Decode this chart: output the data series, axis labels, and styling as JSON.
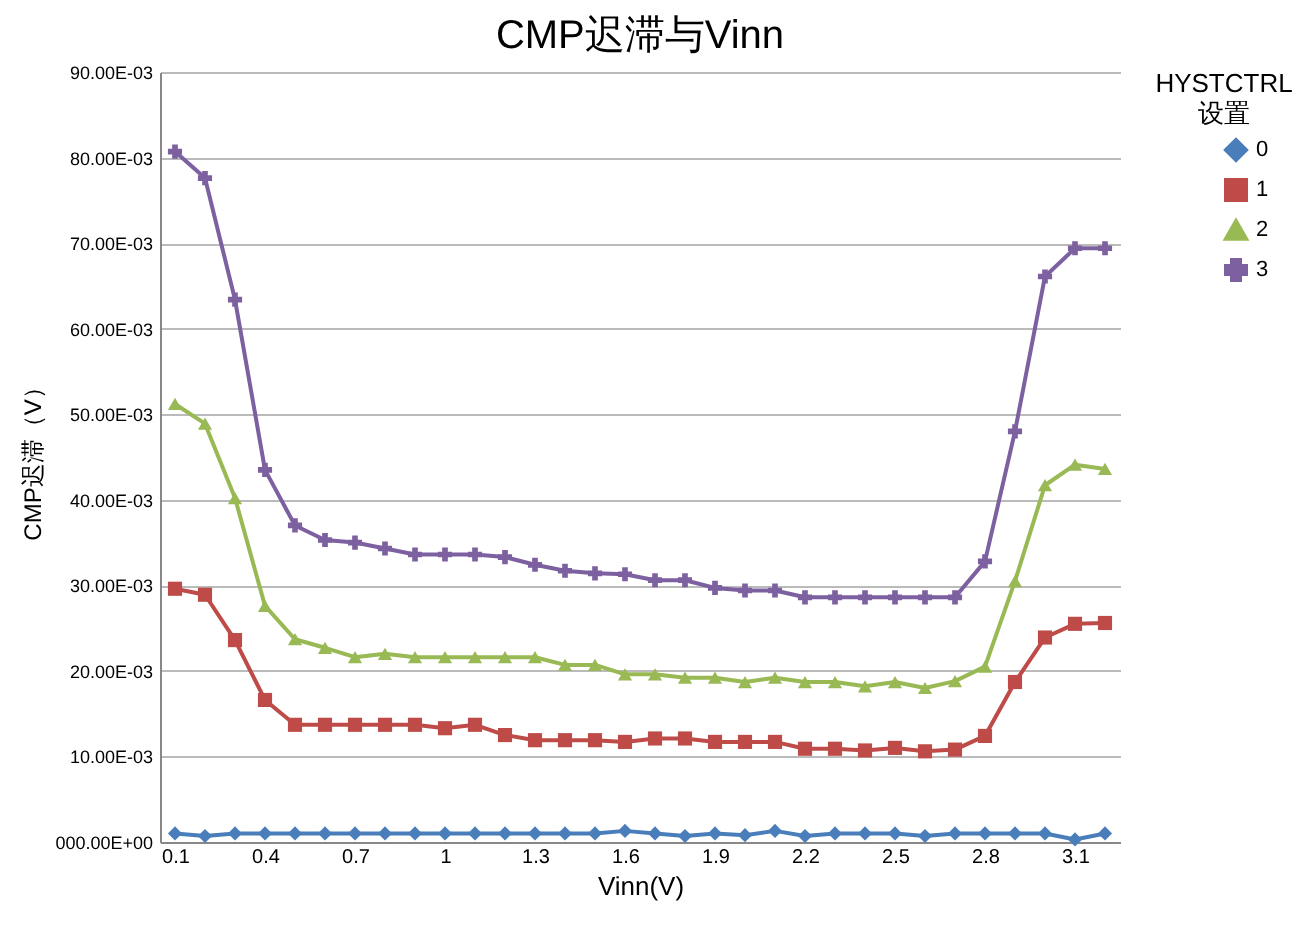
{
  "chart_data": {
    "type": "line",
    "title": "CMP迟滞与Vinn",
    "xlabel": "Vinn(V)",
    "ylabel": "CMP迟滞（V）",
    "legend_title": "HYSTCTRL 设置",
    "categories": [
      "0.1",
      null,
      null,
      "0.4",
      null,
      null,
      "0.7",
      null,
      null,
      "1",
      null,
      null,
      "1.3",
      null,
      null,
      "1.6",
      null,
      null,
      "1.9",
      null,
      null,
      "2.2",
      null,
      null,
      "2.5",
      null,
      null,
      "2.8",
      null,
      null,
      "3.1",
      null
    ],
    "series": [
      {
        "name": "0",
        "color": "#4a7ebb",
        "marker": "diamond",
        "values": [
          0.001,
          0.0007,
          0.001,
          0.001,
          0.001,
          0.001,
          0.001,
          0.001,
          0.001,
          0.001,
          0.001,
          0.001,
          0.001,
          0.001,
          0.001,
          0.0013,
          0.001,
          0.0007,
          0.001,
          0.0008,
          0.0013,
          0.0007,
          0.001,
          0.001,
          0.001,
          0.0007,
          0.001,
          0.001,
          0.001,
          0.001,
          0.0003,
          0.001
        ]
      },
      {
        "name": "1",
        "color": "#be4b48",
        "marker": "square",
        "values": [
          0.0296,
          0.0289,
          0.0236,
          0.0166,
          0.0137,
          0.0137,
          0.0137,
          0.0137,
          0.0137,
          0.0133,
          0.0137,
          0.0125,
          0.0119,
          0.0119,
          0.0119,
          0.0117,
          0.0121,
          0.0121,
          0.0117,
          0.0117,
          0.0117,
          0.0109,
          0.0109,
          0.0107,
          0.011,
          0.0106,
          0.0108,
          0.0124,
          0.0187,
          0.0239,
          0.0255,
          0.0256
        ]
      },
      {
        "name": "2",
        "color": "#98b954",
        "marker": "triangle",
        "values": [
          0.0512,
          0.0489,
          0.0402,
          0.0276,
          0.0237,
          0.0227,
          0.0216,
          0.022,
          0.0216,
          0.0216,
          0.0216,
          0.0216,
          0.0216,
          0.0207,
          0.0207,
          0.0196,
          0.0196,
          0.0192,
          0.0192,
          0.0187,
          0.0192,
          0.0187,
          0.0187,
          0.0182,
          0.0187,
          0.018,
          0.0188,
          0.0205,
          0.0305,
          0.0417,
          0.0441,
          0.0436
        ]
      },
      {
        "name": "3",
        "color": "#7d60a0",
        "marker": "cross",
        "values": [
          0.0807,
          0.0776,
          0.0634,
          0.0435,
          0.037,
          0.0353,
          0.035,
          0.0343,
          0.0336,
          0.0336,
          0.0336,
          0.0333,
          0.0324,
          0.0317,
          0.0314,
          0.0313,
          0.0306,
          0.0306,
          0.0297,
          0.0294,
          0.0294,
          0.0286,
          0.0286,
          0.0286,
          0.0286,
          0.0286,
          0.0286,
          0.0328,
          0.048,
          0.0661,
          0.0694,
          0.0694
        ]
      }
    ],
    "ylim": [
      0,
      0.09
    ],
    "yticks": [
      {
        "value": 0,
        "label": "000.00E+00"
      },
      {
        "value": 0.01,
        "label": "10.00E-03"
      },
      {
        "value": 0.02,
        "label": "20.00E-03"
      },
      {
        "value": 0.03,
        "label": "30.00E-03"
      },
      {
        "value": 0.04,
        "label": "40.00E-03"
      },
      {
        "value": 0.05,
        "label": "50.00E-03"
      },
      {
        "value": 0.06,
        "label": "60.00E-03"
      },
      {
        "value": 0.07,
        "label": "70.00E-03"
      },
      {
        "value": 0.08,
        "label": "80.00E-03"
      },
      {
        "value": 0.09,
        "label": "90.00E-03"
      }
    ],
    "grid": "y",
    "legend": "right",
    "line_style": "solid"
  }
}
